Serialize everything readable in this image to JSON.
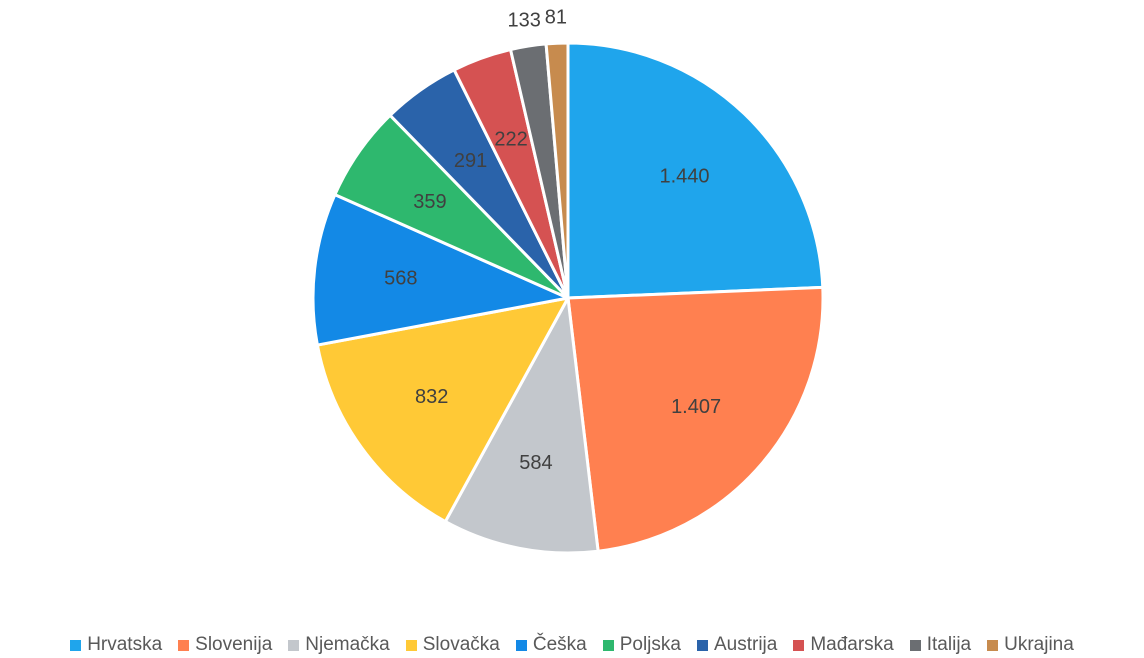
{
  "chart_data": {
    "type": "pie",
    "categories": [
      "Hrvatska",
      "Slovenija",
      "Njemačka",
      "Slovačka",
      "Češka",
      "Poljska",
      "Austrija",
      "Mađarska",
      "Italija",
      "Ukrajina"
    ],
    "values": [
      1440,
      1407,
      584,
      832,
      568,
      359,
      291,
      222,
      133,
      81
    ],
    "data_labels": [
      "1.440",
      "1.407",
      "584",
      "832",
      "568",
      "359",
      "291",
      "222",
      "133",
      "81"
    ],
    "colors": [
      "#1fa5ec",
      "#ff8050",
      "#c3c7cc",
      "#ffc936",
      "#1389e6",
      "#2eb86e",
      "#2a63aa",
      "#d55252",
      "#6b6e72",
      "#c78b4e"
    ],
    "legend_position": "bottom"
  }
}
